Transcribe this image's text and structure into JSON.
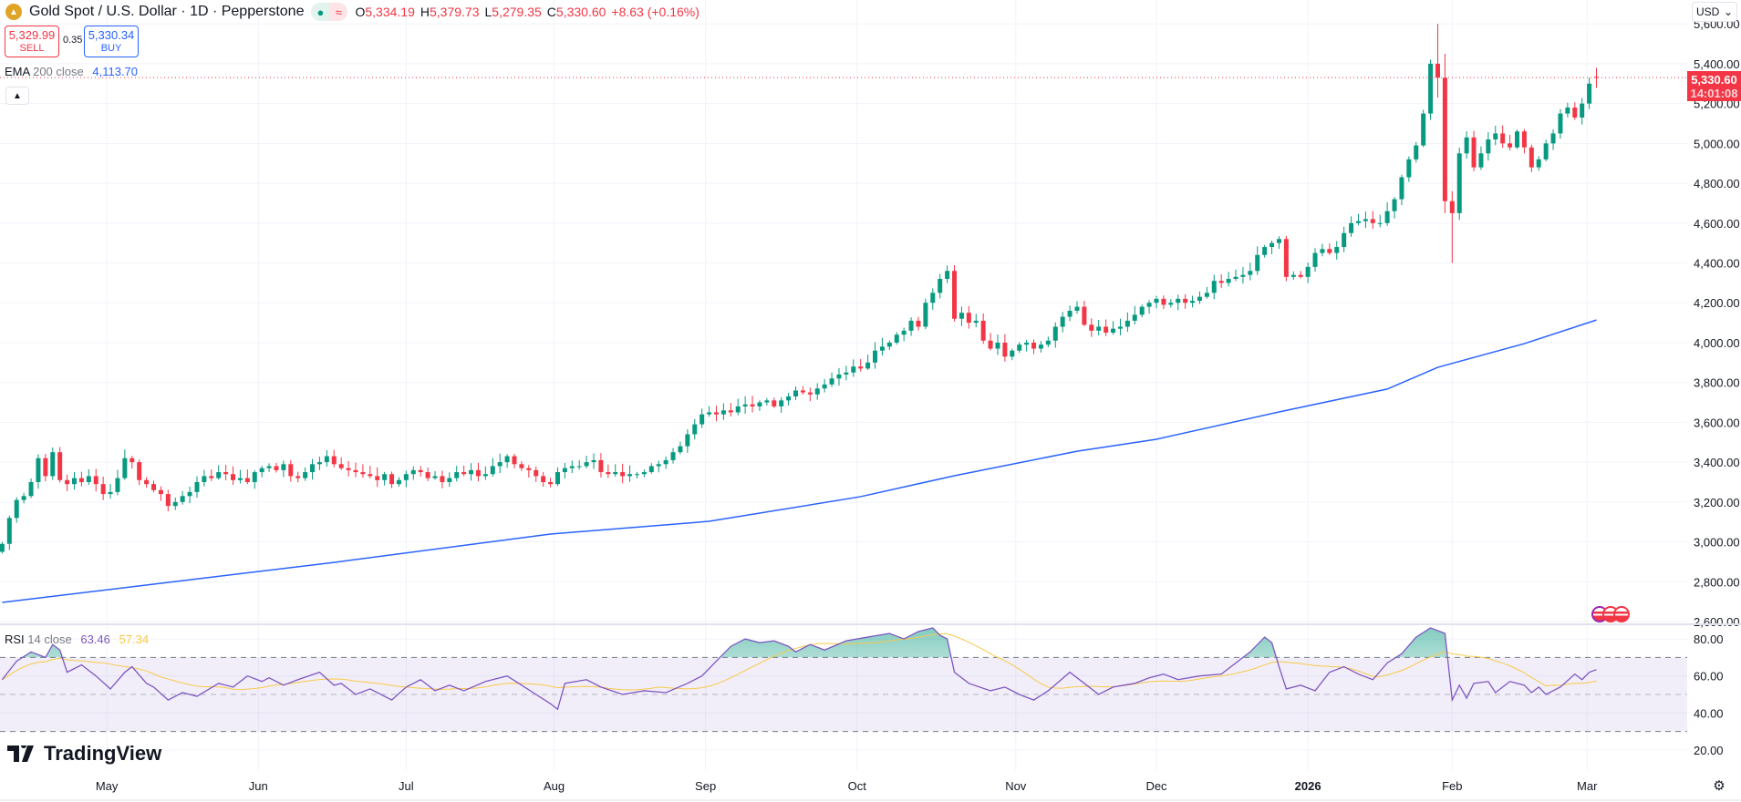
{
  "header": {
    "symbol_title": "Gold Spot / U.S. Dollar · 1D · Pepperstone",
    "status_dot": "●",
    "status_approx": "≈",
    "ohlc": [
      {
        "key": "O",
        "value": "5,334.19"
      },
      {
        "key": "H",
        "value": "5,379.73"
      },
      {
        "key": "L",
        "value": "5,279.35"
      },
      {
        "key": "C",
        "value": "5,330.60"
      }
    ],
    "change": "+8.63 (+0.16%)"
  },
  "trade": {
    "sell_price": "5,329.99",
    "sell_label": "SELL",
    "spread": "0.35",
    "buy_price": "5,330.34",
    "buy_label": "BUY"
  },
  "ema_legend": {
    "name": "EMA",
    "params": "200 close",
    "value": "4,113.70"
  },
  "rsi_legend": {
    "name": "RSI",
    "params": "14 close",
    "value": "63.46",
    "ma_value": "57.34"
  },
  "currency": "USD",
  "price_tag": {
    "price": "5,330.60",
    "countdown": "14:01:08"
  },
  "logo_text": "TradingView",
  "colors": {
    "up": "#089981",
    "down": "#f23645",
    "ema": "#2962ff",
    "rsi": "#7e57c2",
    "rsi_ma": "#f7c948",
    "last_price": "#f23645"
  },
  "chart_data": [
    {
      "type": "candlestick",
      "title": "Gold Spot / U.S. Dollar · 1D · Pepperstone",
      "scale": "linear",
      "grid": true,
      "ylim": [
        2600,
        5600
      ],
      "y_ticks": [
        "5,600.00",
        "5,400.00",
        "5,200.00",
        "5,000.00",
        "4,800.00",
        "4,600.00",
        "4,400.00",
        "4,200.00",
        "4,000.00",
        "3,800.00",
        "3,600.00",
        "3,400.00",
        "3,200.00",
        "3,000.00",
        "2,800.00",
        "2,600.00"
      ],
      "x_ticks": [
        {
          "label": "May",
          "index": 14.5
        },
        {
          "label": "Jun",
          "index": 35.5
        },
        {
          "label": "Jul",
          "index": 56
        },
        {
          "label": "Aug",
          "index": 76.5
        },
        {
          "label": "Sep",
          "index": 97.5
        },
        {
          "label": "Oct",
          "index": 118.5
        },
        {
          "label": "Nov",
          "index": 140.5
        },
        {
          "label": "Dec",
          "index": 160
        },
        {
          "label": "2026",
          "index": 181
        },
        {
          "label": "Feb",
          "index": 201
        },
        {
          "label": "Mar",
          "index": 219.7
        }
      ],
      "first_open": 2950,
      "closes": [
        2990,
        3120,
        3210,
        3230,
        3300,
        3420,
        3330,
        3450,
        3310,
        3290,
        3320,
        3300,
        3330,
        3290,
        3240,
        3250,
        3320,
        3420,
        3400,
        3310,
        3290,
        3260,
        3240,
        3180,
        3200,
        3230,
        3250,
        3300,
        3330,
        3320,
        3350,
        3340,
        3310,
        3320,
        3300,
        3350,
        3370,
        3380,
        3360,
        3390,
        3330,
        3320,
        3350,
        3390,
        3400,
        3430,
        3390,
        3370,
        3360,
        3350,
        3340,
        3330,
        3310,
        3340,
        3290,
        3310,
        3340,
        3360,
        3350,
        3320,
        3330,
        3300,
        3320,
        3350,
        3340,
        3360,
        3330,
        3340,
        3380,
        3400,
        3430,
        3390,
        3370,
        3360,
        3330,
        3300,
        3290,
        3350,
        3370,
        3380,
        3380,
        3400,
        3410,
        3350,
        3340,
        3350,
        3330,
        3340,
        3340,
        3350,
        3380,
        3390,
        3410,
        3450,
        3480,
        3540,
        3590,
        3640,
        3650,
        3640,
        3660,
        3650,
        3680,
        3690,
        3680,
        3700,
        3710,
        3680,
        3710,
        3730,
        3760,
        3750,
        3740,
        3770,
        3790,
        3820,
        3840,
        3850,
        3880,
        3870,
        3900,
        3960,
        3980,
        4000,
        4040,
        4060,
        4110,
        4080,
        4200,
        4250,
        4320,
        4360,
        4120,
        4150,
        4100,
        4110,
        4010,
        3970,
        4000,
        3930,
        3960,
        3990,
        4000,
        3970,
        3990,
        4010,
        4080,
        4130,
        4160,
        4180,
        4090,
        4060,
        4080,
        4050,
        4070,
        4080,
        4110,
        4140,
        4180,
        4200,
        4220,
        4190,
        4200,
        4220,
        4200,
        4210,
        4230,
        4250,
        4310,
        4300,
        4320,
        4330,
        4340,
        4360,
        4440,
        4480,
        4500,
        4520,
        4330,
        4340,
        4330,
        4380,
        4450,
        4470,
        4450,
        4480,
        4550,
        4600,
        4610,
        4620,
        4600,
        4600,
        4660,
        4720,
        4830,
        4920,
        4990,
        5150,
        5400,
        5330,
        4710,
        4650,
        4950,
        5030,
        4880,
        4950,
        5020,
        5050,
        5000,
        4980,
        5060,
        4980,
        4880,
        4920,
        5000,
        5050,
        5150,
        5180,
        5130,
        5200,
        5300,
        5330.6
      ],
      "last_candle": {
        "open": 5334.19,
        "high": 5379.73,
        "low": 5279.35,
        "close": 5330.6
      },
      "large_wicks": [
        {
          "index": 199,
          "high": 5600,
          "low": 5230
        },
        {
          "index": 200,
          "high": 5450,
          "low": 4650
        },
        {
          "index": 201,
          "high": 4760,
          "low": 4400
        }
      ],
      "last_price": 5330.6,
      "ema": {
        "name": "EMA 200 close",
        "points": [
          [
            0,
            2696
          ],
          [
            46,
            2897
          ],
          [
            76,
            3039
          ],
          [
            98,
            3103
          ],
          [
            119,
            3227
          ],
          [
            132,
            3332
          ],
          [
            149,
            3455
          ],
          [
            160,
            3515
          ],
          [
            177,
            3652
          ],
          [
            192,
            3767
          ],
          [
            199,
            3876
          ],
          [
            211,
            3995
          ],
          [
            221,
            4113.7
          ]
        ]
      }
    },
    {
      "type": "line",
      "title": "RSI 14 close",
      "ylim": [
        10,
        90
      ],
      "y_ticks": [
        "80.00",
        "60.00",
        "40.00",
        "20.00"
      ],
      "bands": {
        "upper": 70,
        "middle": 50,
        "lower": 30
      },
      "rsi_points": [
        [
          0,
          58
        ],
        [
          2,
          68
        ],
        [
          4,
          73
        ],
        [
          6,
          70
        ],
        [
          7,
          77
        ],
        [
          8,
          74
        ],
        [
          9,
          62
        ],
        [
          11,
          66
        ],
        [
          13,
          60
        ],
        [
          15,
          53
        ],
        [
          17,
          62
        ],
        [
          18,
          65
        ],
        [
          20,
          56
        ],
        [
          21,
          54
        ],
        [
          23,
          47
        ],
        [
          25,
          51
        ],
        [
          27,
          49
        ],
        [
          30,
          56
        ],
        [
          32,
          54
        ],
        [
          34,
          60
        ],
        [
          36,
          57
        ],
        [
          37,
          59
        ],
        [
          39,
          55
        ],
        [
          41,
          58
        ],
        [
          44,
          62
        ],
        [
          46,
          55
        ],
        [
          47,
          56
        ],
        [
          49,
          50
        ],
        [
          51,
          53
        ],
        [
          54,
          47
        ],
        [
          56,
          54
        ],
        [
          58,
          58
        ],
        [
          60,
          52
        ],
        [
          62,
          55
        ],
        [
          64,
          52
        ],
        [
          67,
          57
        ],
        [
          70,
          60
        ],
        [
          72,
          55
        ],
        [
          74,
          50
        ],
        [
          76,
          45
        ],
        [
          77,
          42
        ],
        [
          78,
          56
        ],
        [
          81,
          58
        ],
        [
          83,
          54
        ],
        [
          86,
          50
        ],
        [
          89,
          52
        ],
        [
          92,
          51
        ],
        [
          95,
          56
        ],
        [
          97,
          60
        ],
        [
          99,
          68
        ],
        [
          101,
          76
        ],
        [
          103,
          80
        ],
        [
          105,
          78
        ],
        [
          107,
          79
        ],
        [
          109,
          76
        ],
        [
          110,
          73
        ],
        [
          112,
          77
        ],
        [
          114,
          74
        ],
        [
          117,
          79
        ],
        [
          120,
          81
        ],
        [
          123,
          83
        ],
        [
          125,
          80
        ],
        [
          127,
          84
        ],
        [
          129,
          86
        ],
        [
          130,
          82
        ],
        [
          131,
          80
        ],
        [
          132,
          62
        ],
        [
          134,
          56
        ],
        [
          137,
          52
        ],
        [
          139,
          54
        ],
        [
          141,
          50
        ],
        [
          143,
          47
        ],
        [
          145,
          52
        ],
        [
          148,
          62
        ],
        [
          150,
          56
        ],
        [
          152,
          50
        ],
        [
          154,
          54
        ],
        [
          157,
          56
        ],
        [
          159,
          59
        ],
        [
          161,
          61
        ],
        [
          163,
          58
        ],
        [
          166,
          60
        ],
        [
          169,
          61
        ],
        [
          171,
          67
        ],
        [
          173,
          73
        ],
        [
          175,
          81
        ],
        [
          176,
          78
        ],
        [
          177,
          65
        ],
        [
          178,
          53
        ],
        [
          180,
          55
        ],
        [
          182,
          52
        ],
        [
          184,
          62
        ],
        [
          186,
          65
        ],
        [
          188,
          61
        ],
        [
          190,
          58
        ],
        [
          192,
          67
        ],
        [
          194,
          72
        ],
        [
          196,
          81
        ],
        [
          198,
          86
        ],
        [
          200,
          83
        ],
        [
          201,
          47
        ],
        [
          202,
          55
        ],
        [
          203,
          48
        ],
        [
          204,
          56
        ],
        [
          206,
          57
        ],
        [
          207,
          51
        ],
        [
          209,
          57
        ],
        [
          211,
          55
        ],
        [
          212,
          51
        ],
        [
          213,
          54
        ],
        [
          214,
          50
        ],
        [
          216,
          54
        ],
        [
          218,
          61
        ],
        [
          219,
          58
        ],
        [
          220,
          62
        ],
        [
          221,
          63.46
        ]
      ],
      "rsi_last": 63.46,
      "ma_last": 57.34
    }
  ]
}
